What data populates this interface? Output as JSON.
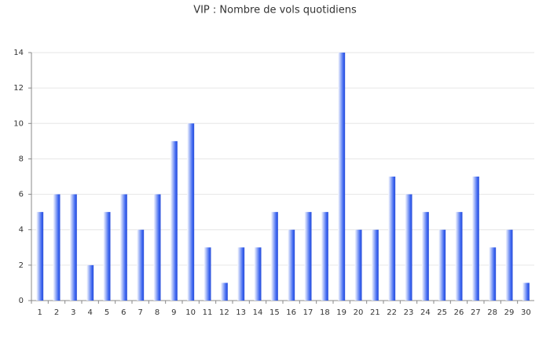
{
  "chart_data": {
    "type": "bar",
    "title": "VIP : Nombre de vols quotidiens",
    "categories": [
      "1",
      "2",
      "3",
      "4",
      "5",
      "6",
      "7",
      "8",
      "9",
      "10",
      "11",
      "12",
      "13",
      "14",
      "15",
      "16",
      "17",
      "18",
      "19",
      "20",
      "21",
      "22",
      "23",
      "24",
      "25",
      "26",
      "27",
      "28",
      "29",
      "30"
    ],
    "values": [
      5,
      6,
      6,
      2,
      5,
      6,
      4,
      6,
      9,
      10,
      3,
      1,
      3,
      3,
      5,
      4,
      5,
      5,
      14,
      4,
      4,
      7,
      6,
      5,
      4,
      5,
      7,
      3,
      4,
      1
    ],
    "color": "#3d66f0",
    "ylim": [
      0,
      14
    ],
    "yticks": [
      0,
      2,
      4,
      6,
      8,
      10,
      12,
      14
    ],
    "grid": true
  }
}
